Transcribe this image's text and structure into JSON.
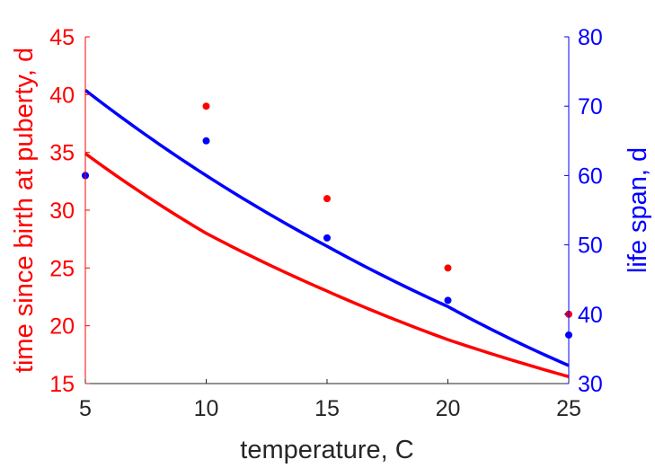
{
  "chart_data": {
    "type": "scatter",
    "title": "",
    "xlabel": "temperature, C",
    "ylabel_left": "time since birth at puberty, d",
    "ylabel_right": "life span, d",
    "xlim": [
      5,
      25
    ],
    "ylim_left": [
      15,
      45
    ],
    "ylim_right": [
      30,
      80
    ],
    "x_ticks": [
      5,
      10,
      15,
      20,
      25
    ],
    "y_left_ticks": [
      15,
      20,
      25,
      30,
      35,
      40,
      45
    ],
    "y_right_ticks": [
      30,
      40,
      50,
      60,
      70,
      80
    ],
    "grid": false,
    "legend": "none",
    "series": [
      {
        "axis": "left",
        "color": "#ff0000",
        "points": {
          "x": [
            5,
            10,
            15,
            20,
            25
          ],
          "y": [
            33,
            39,
            31,
            25,
            21
          ]
        },
        "curve": {
          "x": [
            5,
            10,
            15,
            20,
            25
          ],
          "y": [
            34.9,
            28.0,
            23.0,
            18.8,
            15.6
          ]
        }
      },
      {
        "axis": "right",
        "color": "#0000ff",
        "points": {
          "x": [
            5,
            10,
            15,
            20,
            25
          ],
          "y": [
            60,
            65,
            51,
            42,
            37
          ]
        },
        "curve": {
          "x": [
            5,
            10,
            15,
            20,
            25
          ],
          "y": [
            72.3,
            60.0,
            49.8,
            41.1,
            32.6
          ]
        }
      }
    ]
  }
}
